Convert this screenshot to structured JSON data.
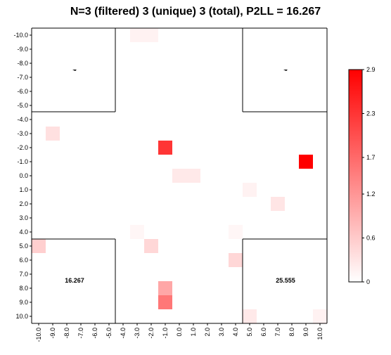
{
  "chart_data": {
    "type": "heatmap",
    "title": "N=3 (filtered) 3 (unique) 3 (total), P2LL = 16.267",
    "x_ticks": [
      "-10.0",
      "-9.0",
      "-8.0",
      "-7.0",
      "-6.0",
      "-5.0",
      "-4.0",
      "-3.0",
      "-2.0",
      "-1.0",
      "0.0",
      "1.0",
      "2.0",
      "3.0",
      "4.0",
      "5.0",
      "6.0",
      "7.0",
      "8.0",
      "9.0",
      "10.0"
    ],
    "y_ticks": [
      "-10.0",
      "-9.0",
      "-8.0",
      "-7.0",
      "-6.0",
      "-5.0",
      "-4.0",
      "-3.0",
      "-2.0",
      "-1.0",
      "0.0",
      "1.0",
      "2.0",
      "3.0",
      "4.0",
      "5.0",
      "6.0",
      "7.0",
      "8.0",
      "9.0",
      "10.0"
    ],
    "xlim": [
      -10,
      10
    ],
    "ylim": [
      -10,
      10
    ],
    "colorbar": {
      "min": 0,
      "max": 2.9,
      "ticks": [
        "2.9",
        "2.3",
        "1.7",
        "1.2",
        "0.6",
        "0"
      ],
      "tick_values": [
        2.9,
        2.3,
        1.7,
        1.2,
        0.6,
        0
      ],
      "low_color": "#ffffff",
      "high_color": "#ff0000"
    },
    "cells": [
      {
        "x": -3,
        "y": -10,
        "value": 0.15
      },
      {
        "x": -2,
        "y": -10,
        "value": 0.15
      },
      {
        "x": -9,
        "y": -3,
        "value": 0.35
      },
      {
        "x": -1,
        "y": -2,
        "value": 2.3
      },
      {
        "x": 9,
        "y": -1,
        "value": 2.9
      },
      {
        "x": 0,
        "y": 0,
        "value": 0.25
      },
      {
        "x": 1,
        "y": 0,
        "value": 0.25
      },
      {
        "x": 5,
        "y": 1,
        "value": 0.15
      },
      {
        "x": 7,
        "y": 2,
        "value": 0.3
      },
      {
        "x": -3,
        "y": 4,
        "value": 0.1
      },
      {
        "x": 4,
        "y": 4,
        "value": 0.1
      },
      {
        "x": -10,
        "y": 5,
        "value": 0.55
      },
      {
        "x": -2,
        "y": 5,
        "value": 0.45
      },
      {
        "x": 4,
        "y": 6,
        "value": 0.45
      },
      {
        "x": -1,
        "y": 8,
        "value": 1.0
      },
      {
        "x": -1,
        "y": 9,
        "value": 1.55
      },
      {
        "x": 5,
        "y": 10,
        "value": 0.25
      },
      {
        "x": 10,
        "y": 10,
        "value": 0.15
      }
    ],
    "annotations": [
      "16.267",
      "25.555"
    ]
  }
}
